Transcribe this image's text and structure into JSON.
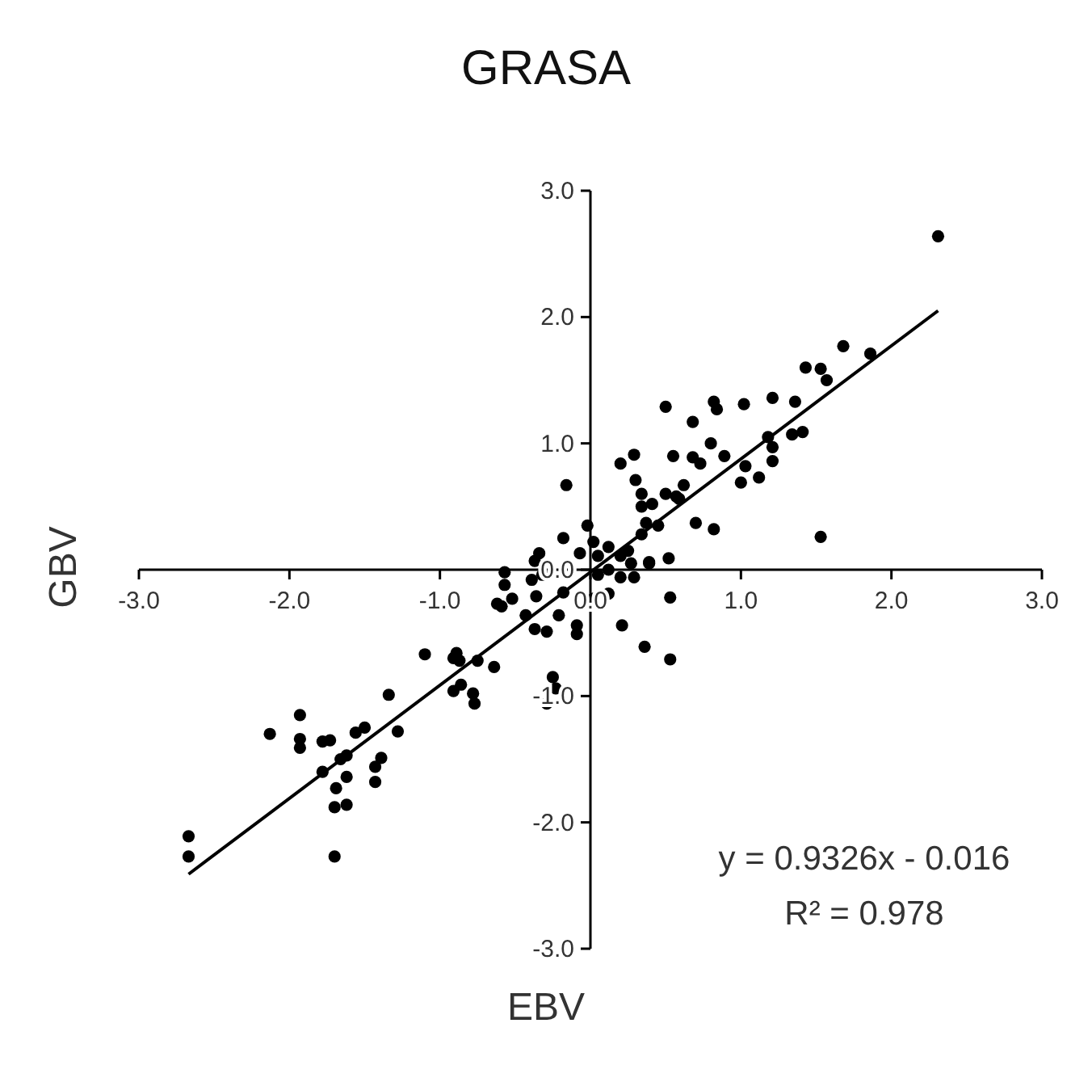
{
  "chart_data": {
    "type": "scatter",
    "title": "GRASA",
    "xlabel": "EBV",
    "ylabel": "GBV",
    "xlim": [
      -3,
      3
    ],
    "ylim": [
      -3,
      3
    ],
    "xticks": [
      {
        "value": -3,
        "label": "-3.0"
      },
      {
        "value": -2,
        "label": "-2.0"
      },
      {
        "value": -1,
        "label": "-1.0"
      },
      {
        "value": 0,
        "label": "0.0"
      },
      {
        "value": 1,
        "label": "1.0"
      },
      {
        "value": 2,
        "label": "2.0"
      },
      {
        "value": 3,
        "label": "3.0"
      }
    ],
    "yticks": [
      {
        "value": -3,
        "label": "-3.0"
      },
      {
        "value": -2,
        "label": "-2.0"
      },
      {
        "value": -1,
        "label": "-1.0"
      },
      {
        "value": 0,
        "label": "0.0"
      },
      {
        "value": 1,
        "label": "1.0"
      },
      {
        "value": 2,
        "label": "2.0"
      },
      {
        "value": 3,
        "label": "3.0"
      }
    ],
    "grid": false,
    "series": [
      {
        "marker": "circle",
        "color": "#000000",
        "x": [
          -1.1,
          -0.91,
          -0.91,
          -1.34,
          -1.93,
          -2.13,
          -1.93,
          -1.93,
          -1.78,
          -1.73,
          -1.56,
          -1.5,
          -1.28,
          -1.62,
          -1.66,
          -1.78,
          -1.39,
          -1.43,
          -1.43,
          -1.62,
          -1.69,
          -1.7,
          -1.62,
          -2.67,
          -2.67,
          -1.7,
          -0.16,
          0.2,
          -0.18,
          -0.02,
          -0.34,
          -0.37,
          -0.07,
          0.02,
          0.05,
          0.12,
          0.2,
          0.25,
          0.27,
          0.12,
          0.05,
          0.2,
          0.29,
          0.39,
          0.52,
          -0.57,
          -0.57,
          -0.39,
          -0.32,
          -0.36,
          -0.18,
          -0.52,
          -0.59,
          -0.62,
          0.02,
          0.12,
          -0.21,
          -0.43,
          -0.37,
          -0.29,
          -0.09,
          -0.09,
          0.21,
          0.36,
          0.53,
          0.53,
          -0.89,
          -0.87,
          -0.75,
          -0.64,
          -0.86,
          -0.78,
          -0.77,
          -0.25,
          -0.23,
          -0.29,
          0.3,
          0.34,
          0.41,
          0.34,
          0.45,
          0.34,
          0.7,
          0.82,
          0.57,
          0.62,
          2.31,
          1.68,
          1.86,
          1.43,
          1.53,
          1.57,
          0.5,
          0.82,
          0.84,
          1.02,
          1.21,
          1.36,
          0.68,
          0.8,
          1.18,
          1.21,
          1.34,
          1.41,
          1.21,
          1.0,
          1.03,
          1.12,
          0.29,
          0.55,
          0.68,
          0.73,
          0.89,
          0.5,
          0.59,
          1.53,
          0.39,
          0.37
        ],
        "values": [
          -0.67,
          -0.7,
          -0.96,
          -0.99,
          -1.15,
          -1.3,
          -1.34,
          -1.41,
          -1.36,
          -1.35,
          -1.29,
          -1.25,
          -1.28,
          -1.47,
          -1.5,
          -1.6,
          -1.49,
          -1.56,
          -1.68,
          -1.64,
          -1.73,
          -1.88,
          -1.86,
          -2.11,
          -2.27,
          -2.27,
          0.67,
          0.84,
          0.25,
          0.35,
          0.13,
          0.07,
          0.13,
          0.22,
          0.11,
          0.18,
          0.11,
          0.15,
          0.05,
          0.0,
          -0.04,
          -0.06,
          -0.06,
          0.05,
          0.09,
          -0.02,
          -0.12,
          -0.08,
          -0.04,
          -0.21,
          -0.18,
          -0.23,
          -0.29,
          -0.27,
          -0.23,
          -0.19,
          -0.36,
          -0.36,
          -0.47,
          -0.49,
          -0.44,
          -0.51,
          -0.44,
          -0.61,
          -0.71,
          -0.22,
          -0.66,
          -0.72,
          -0.72,
          -0.77,
          -0.91,
          -0.98,
          -1.06,
          -0.85,
          -0.94,
          -1.06,
          0.71,
          0.6,
          0.52,
          0.5,
          0.35,
          0.28,
          0.37,
          0.32,
          0.58,
          0.67,
          2.64,
          1.77,
          1.71,
          1.6,
          1.59,
          1.5,
          1.29,
          1.33,
          1.27,
          1.31,
          1.36,
          1.33,
          1.17,
          1.0,
          1.05,
          0.97,
          1.07,
          1.09,
          0.86,
          0.69,
          0.82,
          0.73,
          0.91,
          0.9,
          0.89,
          0.84,
          0.9,
          0.6,
          0.56,
          0.26,
          0.06,
          0.37
        ]
      },
      {
        "type": "line",
        "marker": "none",
        "color": "#000000",
        "x": [
          -2.67,
          2.31
        ],
        "values": [
          -2.41,
          2.05
        ]
      }
    ],
    "annotations": [
      "y = 0.9326x - 0.016",
      "R² = 0.978"
    ]
  }
}
